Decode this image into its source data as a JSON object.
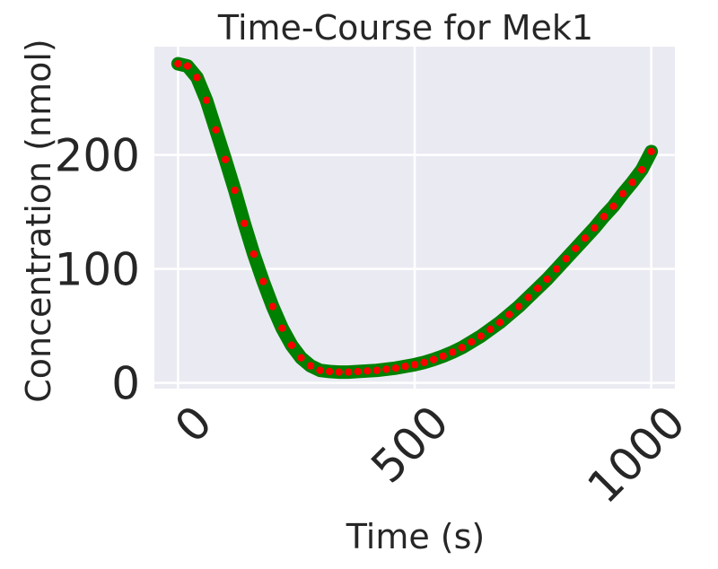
{
  "chart_data": {
    "type": "line",
    "title": "Time-Course for Mek1",
    "xlabel": "Time (s)",
    "ylabel": "Concentration (nmol)",
    "xlim": [
      -50,
      1050
    ],
    "ylim": [
      -5,
      295
    ],
    "xticks": [
      0,
      500,
      1000
    ],
    "xtick_labels": [
      "0",
      "500",
      "1000"
    ],
    "yticks": [
      0,
      100,
      200
    ],
    "ytick_labels": [
      "0",
      "100",
      "200"
    ],
    "xtick_rotation_deg": 45,
    "grid": true,
    "background": "#eaeaf2",
    "series": [
      {
        "style": "thick-line",
        "color": "#008000",
        "x": [
          0,
          20,
          40,
          60,
          80,
          100,
          120,
          140,
          160,
          180,
          200,
          220,
          240,
          260,
          280,
          300,
          320,
          340,
          360,
          380,
          400,
          420,
          440,
          460,
          480,
          500,
          520,
          540,
          560,
          580,
          600,
          620,
          640,
          660,
          680,
          700,
          720,
          740,
          760,
          780,
          800,
          820,
          840,
          860,
          880,
          900,
          920,
          940,
          960,
          980,
          1000
        ],
        "y": [
          280,
          278,
          268,
          248,
          222,
          196,
          169,
          140,
          113,
          89,
          67,
          48,
          33,
          22,
          15,
          11,
          10,
          9.5,
          9.5,
          10,
          10.5,
          11,
          12,
          13,
          14.5,
          16,
          18,
          20.5,
          23.5,
          27,
          31,
          36,
          41,
          47,
          53,
          60,
          67,
          75,
          83,
          91,
          100,
          109,
          118,
          127,
          136,
          146,
          155,
          166,
          176,
          187,
          203
        ]
      },
      {
        "style": "dots",
        "color": "#ff0000",
        "x": [
          0,
          20,
          40,
          60,
          80,
          100,
          120,
          140,
          160,
          180,
          200,
          220,
          240,
          260,
          280,
          300,
          320,
          340,
          360,
          380,
          400,
          420,
          440,
          460,
          480,
          500,
          520,
          540,
          560,
          580,
          600,
          620,
          640,
          660,
          680,
          700,
          720,
          740,
          760,
          780,
          800,
          820,
          840,
          860,
          880,
          900,
          920,
          940,
          960,
          980,
          1000
        ],
        "y": [
          280,
          278,
          268,
          248,
          222,
          196,
          169,
          140,
          113,
          89,
          67,
          48,
          33,
          22,
          15,
          11,
          10,
          9.5,
          9.5,
          10,
          10.5,
          11,
          12,
          13,
          14.5,
          16,
          18,
          20.5,
          23.5,
          27,
          31,
          36,
          41,
          47,
          53,
          60,
          67,
          75,
          83,
          91,
          100,
          109,
          118,
          127,
          136,
          146,
          155,
          166,
          176,
          187,
          203
        ]
      }
    ]
  }
}
